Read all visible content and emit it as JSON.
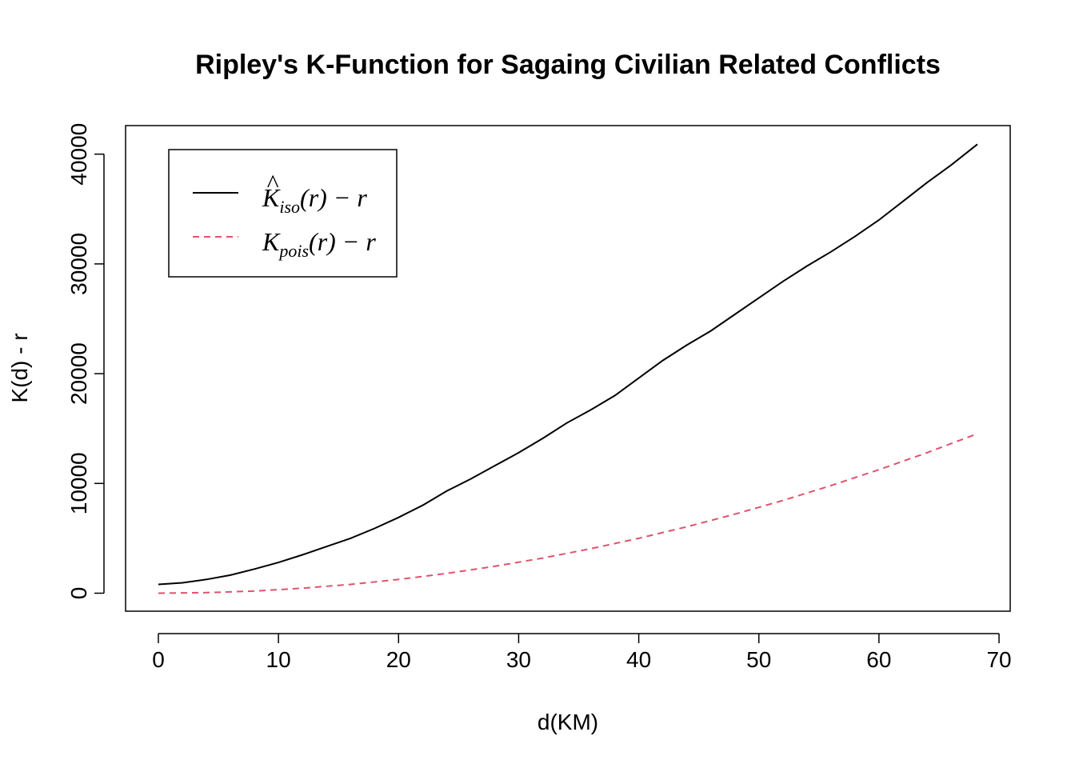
{
  "chart_data": {
    "type": "line",
    "title": "Ripley's K-Function for Sagaing Civilian Related Conflicts",
    "xlabel": "d(KM)",
    "ylabel": "K(d) - r",
    "xlim": [
      -2.73,
      70.93
    ],
    "ylim": [
      -1640,
      42600
    ],
    "x_ticks": [
      0,
      10,
      20,
      30,
      40,
      50,
      60,
      70
    ],
    "y_ticks": [
      0,
      10000,
      20000,
      30000,
      40000
    ],
    "x_tick_labels": [
      "0",
      "10",
      "20",
      "30",
      "40",
      "50",
      "60",
      "70"
    ],
    "y_tick_labels": [
      "0",
      "10000",
      "20000",
      "30000",
      "40000"
    ],
    "grid": false,
    "legend_position": "top-left",
    "series": [
      {
        "name": "K̂iso(r) − r",
        "legend_main": "K",
        "legend_hat": "^",
        "legend_sub": "iso",
        "legend_rest": "(r) − r",
        "color": "#000000",
        "dash": "solid",
        "x": [
          0,
          2,
          4,
          6,
          8,
          10,
          12,
          14,
          16,
          18,
          20,
          22,
          24,
          26,
          28,
          30,
          32,
          34,
          36,
          38,
          40,
          42,
          44,
          46,
          48,
          50,
          52,
          54,
          56,
          58,
          60,
          62,
          64,
          66,
          68.2
        ],
        "y": [
          800,
          950,
          1250,
          1650,
          2200,
          2800,
          3500,
          4250,
          5000,
          5900,
          6900,
          8000,
          9300,
          10400,
          11600,
          12800,
          14100,
          15500,
          16700,
          18000,
          19600,
          21200,
          22600,
          23900,
          25400,
          26900,
          28400,
          29800,
          31100,
          32500,
          34000,
          35700,
          37400,
          39000,
          40900
        ]
      },
      {
        "name": "Kpois(r) − r",
        "legend_main": "K",
        "legend_hat": "",
        "legend_sub": "pois",
        "legend_rest": "(r) − r",
        "color": "#DF536B",
        "dash": "dashed",
        "x": [
          0,
          4,
          8,
          12,
          16,
          20,
          24,
          28,
          32,
          36,
          40,
          44,
          48,
          52,
          56,
          60,
          64,
          68
        ],
        "y": [
          0,
          50,
          200,
          450,
          800,
          1250,
          1800,
          2450,
          3200,
          4050,
          5000,
          6050,
          7200,
          8450,
          9800,
          11250,
          12800,
          14450
        ]
      }
    ]
  }
}
